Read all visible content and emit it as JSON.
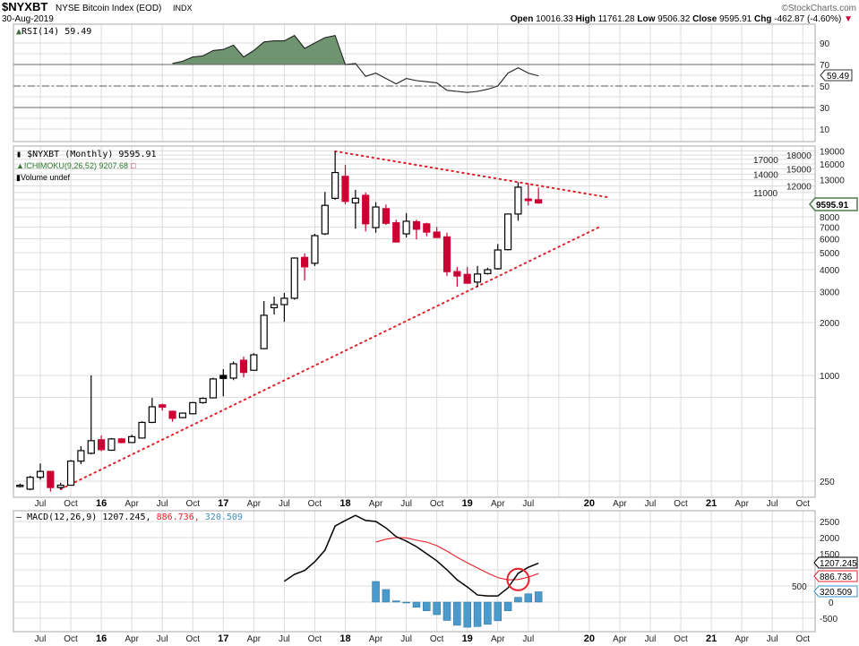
{
  "header": {
    "symbol": "$NYXBT",
    "name": "NYSE Bitcoin Index (EOD)",
    "exchange": "INDX",
    "date": "30-Aug-2019",
    "brand": "©StockCharts.com",
    "open_label": "Open",
    "open": "10016.33",
    "high_label": "High",
    "high": "11761.28",
    "low_label": "Low",
    "low": "9506.32",
    "close_label": "Close",
    "close": "9595.91",
    "chg_label": "Chg",
    "chg": "-462.87 (-4.60%)",
    "chg_arrow": "▼"
  },
  "colors": {
    "up": "#000000",
    "down": "#cc0033",
    "rsi_fill": "#6f9470",
    "macd": "#000000",
    "signal": "#e8202a",
    "histogram": "#4a9acb",
    "trendline": "#e0202a",
    "grid": "#dcdcdc"
  },
  "rsi_panel": {
    "legend": "RSI(14) 59.49",
    "current": "59.49",
    "ticks": [
      "90",
      "70",
      "50",
      "30",
      "10"
    ]
  },
  "price_panel": {
    "legend_price": "$NYXBT (Monthly) 9595.91",
    "legend_ichimoku": "ICHIMOKU(9,26,52) 9207.68",
    "legend_volume": "Volume undef",
    "current": "9595.91",
    "ticks": [
      "19000",
      "18000",
      "17000",
      "16000",
      "15000",
      "14000",
      "13000",
      "12000",
      "11000",
      "8000",
      "7000",
      "6000",
      "5000",
      "4000",
      "3000",
      "2000",
      "1000",
      "250"
    ]
  },
  "macd_panel": {
    "legend_name": "MACD(12,26,9) 1207.245,",
    "legend_signal": "886.736,",
    "legend_hist": "320.509",
    "macd_current": "1207.245",
    "signal_current": "886.736",
    "hist_current": "320.509",
    "ticks": [
      "2500",
      "2000",
      "1500",
      "500",
      "0",
      "-500"
    ]
  },
  "x_axis_labels": [
    {
      "label": "Jul",
      "month": "2015-07"
    },
    {
      "label": "Oct",
      "month": "2015-10"
    },
    {
      "label": "16",
      "month": "2016-01",
      "bold": true
    },
    {
      "label": "Apr",
      "month": "2016-04"
    },
    {
      "label": "Jul",
      "month": "2016-07"
    },
    {
      "label": "Oct",
      "month": "2016-10"
    },
    {
      "label": "17",
      "month": "2017-01",
      "bold": true
    },
    {
      "label": "Apr",
      "month": "2017-04"
    },
    {
      "label": "Jul",
      "month": "2017-07"
    },
    {
      "label": "Oct",
      "month": "2017-10"
    },
    {
      "label": "18",
      "month": "2018-01",
      "bold": true
    },
    {
      "label": "Apr",
      "month": "2018-04"
    },
    {
      "label": "Jul",
      "month": "2018-07"
    },
    {
      "label": "Oct",
      "month": "2018-10"
    },
    {
      "label": "19",
      "month": "2019-01",
      "bold": true
    },
    {
      "label": "Apr",
      "month": "2019-04"
    },
    {
      "label": "Jul",
      "month": "2019-07"
    },
    {
      "label": "20",
      "month": "2020-01",
      "bold": true
    },
    {
      "label": "Apr",
      "month": "2020-04"
    },
    {
      "label": "Jul",
      "month": "2020-07"
    },
    {
      "label": "Oct",
      "month": "2020-10"
    },
    {
      "label": "21",
      "month": "2021-01",
      "bold": true
    },
    {
      "label": "Apr",
      "month": "2021-04"
    },
    {
      "label": "Jul",
      "month": "2021-07"
    },
    {
      "label": "Oct",
      "month": "2021-10"
    }
  ],
  "chart_data": [
    {
      "type": "candlestick",
      "title": "$NYXBT (Monthly)",
      "scale": "log",
      "ylim": [
        200,
        20000
      ],
      "grid": true,
      "x": [
        "2015-05",
        "2015-06",
        "2015-07",
        "2015-08",
        "2015-09",
        "2015-10",
        "2015-11",
        "2015-12",
        "2016-01",
        "2016-02",
        "2016-03",
        "2016-04",
        "2016-05",
        "2016-06",
        "2016-07",
        "2016-08",
        "2016-09",
        "2016-10",
        "2016-11",
        "2016-12",
        "2017-01",
        "2017-02",
        "2017-03",
        "2017-04",
        "2017-05",
        "2017-06",
        "2017-07",
        "2017-08",
        "2017-09",
        "2017-10",
        "2017-11",
        "2017-12",
        "2018-01",
        "2018-02",
        "2018-03",
        "2018-04",
        "2018-05",
        "2018-06",
        "2018-07",
        "2018-08",
        "2018-09",
        "2018-10",
        "2018-11",
        "2018-12",
        "2019-01",
        "2019-02",
        "2019-03",
        "2019-04",
        "2019-05",
        "2019-06",
        "2019-07",
        "2019-08"
      ],
      "ohlc": [
        [
          236,
          242,
          230,
          237
        ],
        [
          225,
          268,
          222,
          263
        ],
        [
          263,
          315,
          255,
          284
        ],
        [
          284,
          286,
          218,
          230
        ],
        [
          230,
          245,
          225,
          237
        ],
        [
          237,
          330,
          236,
          325
        ],
        [
          325,
          395,
          313,
          373
        ],
        [
          360,
          1000,
          355,
          425
        ],
        [
          430,
          455,
          370,
          378
        ],
        [
          375,
          440,
          372,
          435
        ],
        [
          435,
          440,
          410,
          415
        ],
        [
          415,
          460,
          412,
          448
        ],
        [
          440,
          548,
          438,
          540
        ],
        [
          540,
          745,
          535,
          663
        ],
        [
          680,
          690,
          630,
          660
        ],
        [
          625,
          630,
          545,
          570
        ],
        [
          575,
          615,
          570,
          610
        ],
        [
          605,
          705,
          600,
          700
        ],
        [
          700,
          750,
          690,
          740
        ],
        [
          745,
          970,
          740,
          955
        ],
        [
          1000,
          1085,
          760,
          960
        ],
        [
          965,
          1200,
          940,
          1165
        ],
        [
          1220,
          1280,
          975,
          1040
        ],
        [
          1070,
          1340,
          1065,
          1310
        ],
        [
          1420,
          2650,
          1420,
          2200
        ],
        [
          2430,
          2810,
          2220,
          2530
        ],
        [
          2530,
          2950,
          2020,
          2750
        ],
        [
          2750,
          4700,
          2700,
          4660
        ],
        [
          4700,
          4950,
          3470,
          4150
        ],
        [
          4350,
          6400,
          4200,
          6250
        ],
        [
          6400,
          11100,
          6300,
          9300
        ],
        [
          10200,
          18900,
          10000,
          14300
        ],
        [
          13600,
          15800,
          9450,
          9800
        ],
        [
          9600,
          11400,
          6850,
          10200
        ],
        [
          10600,
          11000,
          6600,
          7300
        ],
        [
          6950,
          9700,
          6500,
          9100
        ],
        [
          8900,
          9400,
          7200,
          7350
        ],
        [
          7400,
          7700,
          5750,
          5750
        ],
        [
          6400,
          8400,
          6100,
          7550
        ],
        [
          7500,
          7700,
          5950,
          6800
        ],
        [
          7300,
          7400,
          6200,
          6550
        ],
        [
          6550,
          7000,
          6100,
          6100
        ],
        [
          6150,
          6500,
          3680,
          3900
        ],
        [
          3900,
          4150,
          3200,
          3680
        ],
        [
          3760,
          4150,
          3350,
          3350
        ],
        [
          3400,
          4200,
          3200,
          3780
        ],
        [
          3800,
          4100,
          3750,
          4000
        ],
        [
          4050,
          5600,
          4000,
          5180
        ],
        [
          5200,
          8300,
          5150,
          8300
        ],
        [
          8300,
          12600,
          7600,
          11800
        ],
        [
          10100,
          12400,
          9300,
          9900
        ],
        [
          10016.33,
          11761.28,
          9506.32,
          9595.91
        ]
      ],
      "annotations": [
        {
          "type": "dotted-trendline",
          "start": [
            "2017-12",
            18900
          ],
          "end": [
            "2020-03",
            10300
          ]
        },
        {
          "type": "dotted-trendline",
          "start": [
            "2015-09",
            225
          ],
          "end": [
            "2020-02",
            7000
          ]
        }
      ]
    },
    {
      "type": "area",
      "title": "RSI(14)",
      "ylim": [
        0,
        100
      ],
      "reference_lines": [
        70,
        50,
        30
      ],
      "x": [
        "2016-08",
        "2016-09",
        "2016-10",
        "2016-11",
        "2016-12",
        "2017-01",
        "2017-02",
        "2017-03",
        "2017-04",
        "2017-05",
        "2017-06",
        "2017-07",
        "2017-08",
        "2017-09",
        "2017-10",
        "2017-11",
        "2017-12",
        "2018-01",
        "2018-02",
        "2018-03",
        "2018-04",
        "2018-05",
        "2018-06",
        "2018-07",
        "2018-08",
        "2018-09",
        "2018-10",
        "2018-11",
        "2018-12",
        "2019-01",
        "2019-02",
        "2019-03",
        "2019-04",
        "2019-05",
        "2019-06",
        "2019-07",
        "2019-08"
      ],
      "values": [
        71,
        73,
        77,
        78,
        83,
        84,
        88,
        77,
        83,
        91,
        92,
        92,
        97,
        85,
        90,
        95,
        97,
        70,
        71,
        59,
        62,
        57,
        52,
        57,
        55,
        54,
        53,
        46,
        45,
        44,
        45,
        47,
        50,
        62,
        67,
        62,
        59.49
      ]
    },
    {
      "type": "line",
      "title": "MACD(12,26,9)",
      "ylim": [
        -700,
        2800
      ],
      "series": [
        {
          "name": "MACD(12,26,9)",
          "start": "2017-07",
          "values": [
            647,
            860,
            980,
            1250,
            1610,
            2360,
            2530,
            2690,
            2530,
            2500,
            2300,
            2030,
            1890,
            1720,
            1500,
            1280,
            1000,
            690,
            470,
            220,
            190,
            190,
            440,
            890,
            1080,
            1207.245
          ]
        },
        {
          "name": "signal",
          "start": "2018-04",
          "values": [
            1860,
            1950,
            2000,
            1990,
            1920,
            1860,
            1750,
            1580,
            1390,
            1220,
            1060,
            900,
            760,
            690,
            700,
            770,
            886.736
          ]
        },
        {
          "name": "histogram",
          "type": "bar",
          "start": "2018-04",
          "values": [
            640,
            390,
            40,
            -20,
            -160,
            -270,
            -390,
            -570,
            -720,
            -780,
            -760,
            -690,
            -580,
            -270,
            150,
            260,
            320.509
          ]
        }
      ],
      "annotations": [
        {
          "type": "circle",
          "at": [
            "2019-06",
            700
          ]
        }
      ]
    }
  ]
}
